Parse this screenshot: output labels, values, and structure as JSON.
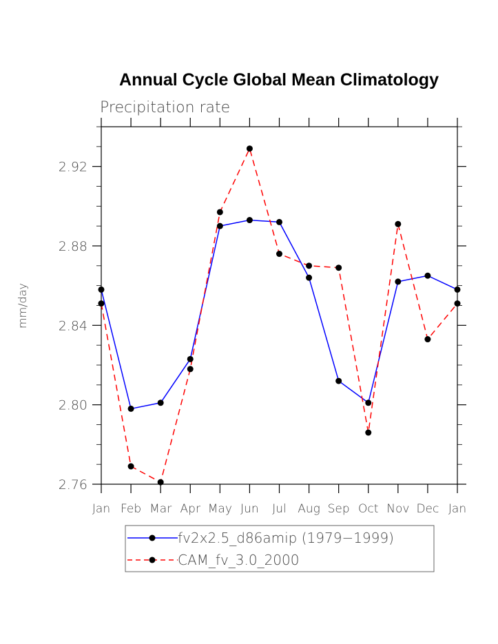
{
  "chart_data": {
    "type": "line",
    "title": "Annual Cycle Global Mean Climatology",
    "subtitle": "Precipitation rate",
    "xlabel": "",
    "ylabel": "mm/day",
    "categories": [
      "Jan",
      "Feb",
      "Mar",
      "Apr",
      "May",
      "Jun",
      "Jul",
      "Aug",
      "Sep",
      "Oct",
      "Nov",
      "Dec",
      "Jan"
    ],
    "ylim": [
      2.76,
      2.94
    ],
    "yticks": [
      2.76,
      2.8,
      2.84,
      2.88,
      2.92
    ],
    "ytick_labels": [
      "2.76",
      "2.80",
      "2.84",
      "2.88",
      "2.92"
    ],
    "yminor_step": 0.01,
    "grid": false,
    "legend_position": "bottom",
    "series": [
      {
        "name": "fv2x2.5_d86amip (1979−1999)",
        "color": "#0000ff",
        "linestyle": "solid",
        "marker": "filled-circle",
        "values": [
          2.858,
          2.798,
          2.801,
          2.823,
          2.89,
          2.893,
          2.892,
          2.864,
          2.812,
          2.801,
          2.862,
          2.865,
          2.858
        ]
      },
      {
        "name": "CAM_fv_3.0_2000",
        "color": "#ff0000",
        "linestyle": "dashed",
        "marker": "filled-circle",
        "values": [
          2.851,
          2.769,
          2.761,
          2.818,
          2.897,
          2.929,
          2.876,
          2.87,
          2.869,
          2.786,
          2.891,
          2.833,
          2.851
        ]
      }
    ]
  }
}
